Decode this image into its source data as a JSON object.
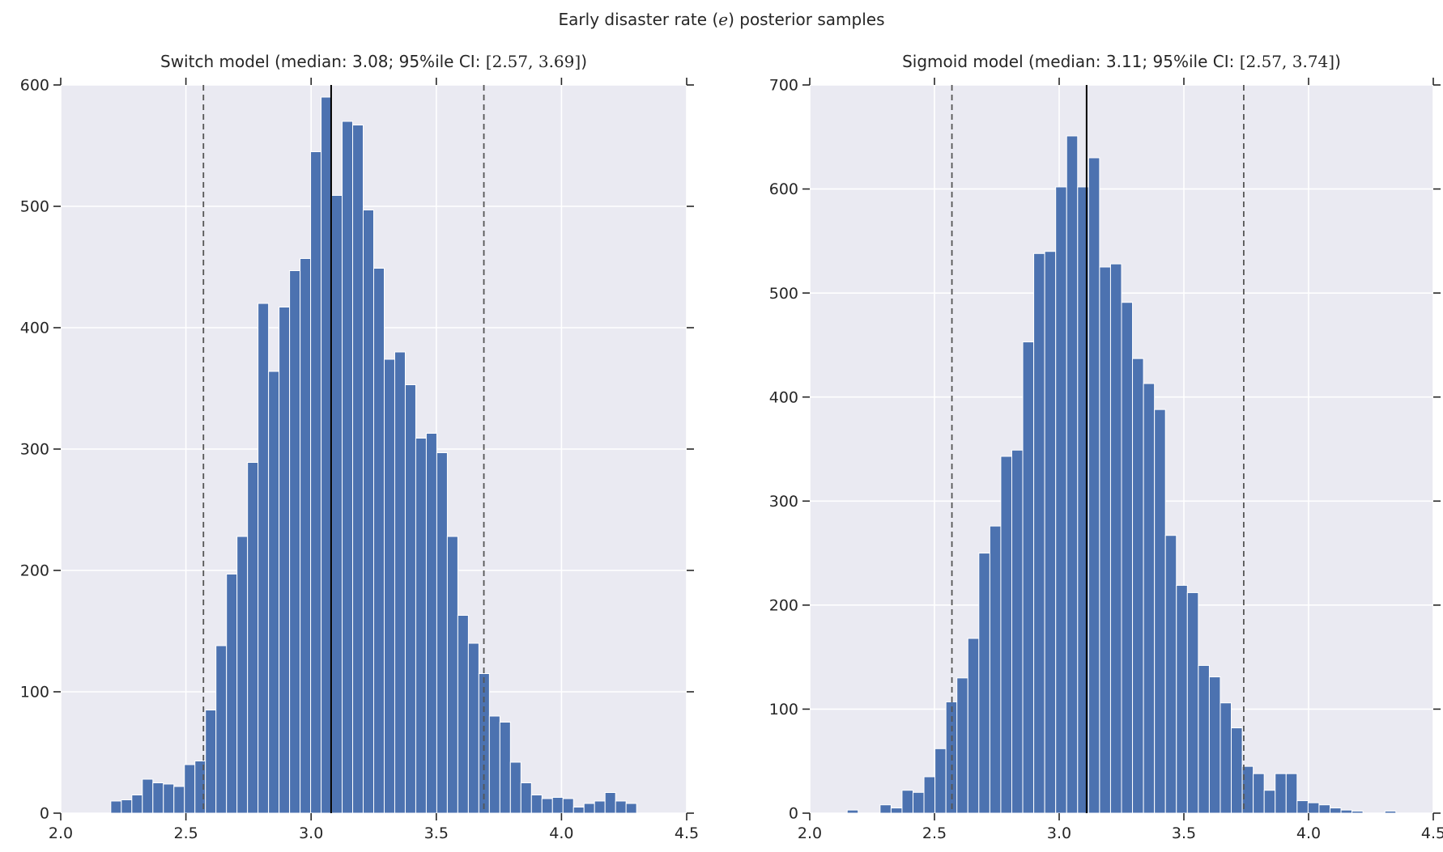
{
  "figure": {
    "title_prefix": "Early disaster rate (",
    "title_var": "e",
    "title_suffix": ") posterior samples"
  },
  "chart_data": [
    {
      "type": "bar",
      "name": "switch-model-posterior-histogram",
      "title_main": "Switch model (median: 3.08; 95%ile CI: ",
      "title_ci": "[2.57, 3.69]",
      "title_close": ")",
      "xlabel": "",
      "ylabel": "",
      "xlim": [
        2.0,
        4.5
      ],
      "ylim": [
        0,
        600
      ],
      "xticks": [
        2.0,
        2.5,
        3.0,
        3.5,
        4.0,
        4.5
      ],
      "yticks": [
        0,
        100,
        200,
        300,
        400,
        500,
        600
      ],
      "grid": true,
      "legend": false,
      "bin_start": 2.2,
      "bin_width": 0.042,
      "values": [
        10,
        11,
        15,
        28,
        25,
        24,
        22,
        40,
        43,
        85,
        138,
        197,
        228,
        289,
        420,
        364,
        417,
        447,
        457,
        545,
        590,
        509,
        570,
        567,
        497,
        449,
        374,
        380,
        353,
        309,
        313,
        297,
        228,
        163,
        140,
        115,
        80,
        75,
        42,
        25,
        15,
        12,
        13,
        12,
        5,
        8,
        10,
        17,
        10,
        8
      ],
      "median": 3.08,
      "ci": [
        2.57,
        3.69
      ],
      "colors": {
        "background": "#EAEAF2",
        "grid": "#FFFFFF",
        "bar": "#4C72B0",
        "bar_edge": "#FFFFFF",
        "median_line": "#000000",
        "ci_line": "#555555",
        "text": "#262626"
      }
    },
    {
      "type": "bar",
      "name": "sigmoid-model-posterior-histogram",
      "title_main": "Sigmoid model (median: 3.11; 95%ile CI: ",
      "title_ci": "[2.57, 3.74]",
      "title_close": ")",
      "xlabel": "",
      "ylabel": "",
      "xlim": [
        2.0,
        4.5
      ],
      "ylim": [
        0,
        700
      ],
      "xticks": [
        2.0,
        2.5,
        3.0,
        3.5,
        4.0,
        4.5
      ],
      "yticks": [
        0,
        100,
        200,
        300,
        400,
        500,
        600,
        700
      ],
      "grid": true,
      "legend": false,
      "bin_start": 2.15,
      "bin_width": 0.044,
      "values": [
        3,
        0,
        0,
        8,
        5,
        22,
        20,
        35,
        62,
        107,
        130,
        168,
        250,
        276,
        343,
        349,
        453,
        538,
        540,
        602,
        651,
        602,
        630,
        525,
        528,
        491,
        437,
        413,
        388,
        267,
        219,
        212,
        142,
        131,
        106,
        82,
        45,
        38,
        22,
        38,
        38,
        12,
        10,
        8,
        5,
        3,
        2,
        0,
        0,
        2
      ],
      "median": 3.11,
      "ci": [
        2.57,
        3.74
      ],
      "colors": {
        "background": "#EAEAF2",
        "grid": "#FFFFFF",
        "bar": "#4C72B0",
        "bar_edge": "#FFFFFF",
        "median_line": "#000000",
        "ci_line": "#555555",
        "text": "#262626"
      }
    }
  ]
}
